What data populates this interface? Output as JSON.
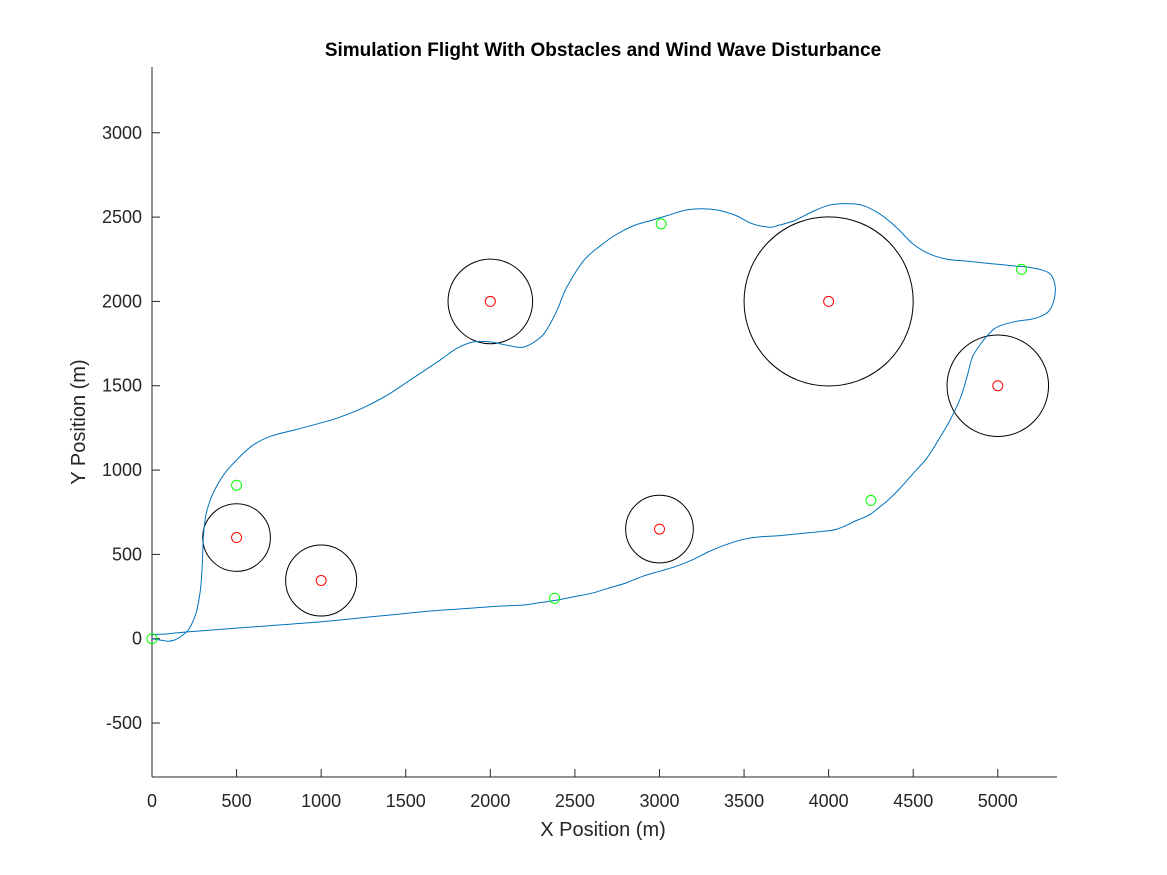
{
  "chart_data": {
    "type": "line",
    "title": "Simulation Flight With Obstacles and Wind Wave Disturbance",
    "xlabel": "X Position (m)",
    "ylabel": "Y Position (m)",
    "xlim": [
      0,
      5350
    ],
    "ylim": [
      -820,
      3390
    ],
    "xticks": [
      0,
      500,
      1000,
      1500,
      2000,
      2500,
      3000,
      3500,
      4000,
      4500,
      5000
    ],
    "yticks": [
      -500,
      0,
      500,
      1000,
      1500,
      2000,
      2500,
      3000
    ],
    "grid": false,
    "legend": "none",
    "colors": {
      "path": "#0072BD",
      "obstacle_boundary": "#000000",
      "obstacle_center": "#FF0000",
      "waypoint": "#00FF00",
      "axis": "#262626"
    },
    "obstacles": [
      {
        "cx": 500,
        "cy": 600,
        "r": 200
      },
      {
        "cx": 1000,
        "cy": 345,
        "r": 210
      },
      {
        "cx": 2000,
        "cy": 2000,
        "r": 250
      },
      {
        "cx": 3000,
        "cy": 650,
        "r": 200
      },
      {
        "cx": 4000,
        "cy": 2000,
        "r": 500
      },
      {
        "cx": 5000,
        "cy": 1500,
        "r": 300
      }
    ],
    "waypoints": [
      {
        "x": 0,
        "y": 0
      },
      {
        "x": 500,
        "y": 910
      },
      {
        "x": 2380,
        "y": 240
      },
      {
        "x": 3010,
        "y": 2460
      },
      {
        "x": 4250,
        "y": 820
      },
      {
        "x": 5140,
        "y": 2190
      }
    ],
    "series": [
      {
        "x": [
          0,
          60,
          100,
          140,
          180,
          220,
          260,
          285,
          295,
          300,
          305,
          320,
          360,
          430,
          520,
          600,
          700,
          850,
          1000,
          1100,
          1250,
          1400,
          1550,
          1700,
          1800,
          1900,
          2000,
          2100,
          2200,
          2300,
          2350,
          2400,
          2450,
          2550,
          2650,
          2750,
          2850,
          2950,
          3050,
          3150,
          3250,
          3350,
          3450,
          3550,
          3650,
          3700,
          3800,
          3900,
          4000,
          4100,
          4200,
          4300,
          4400,
          4500,
          4600,
          4700,
          4800,
          4900,
          5000,
          5100,
          5200,
          5280,
          5320,
          5340,
          5330,
          5300,
          5250,
          5200,
          5100,
          5000,
          4950,
          4900,
          4850,
          4820,
          4780,
          4720,
          4650,
          4580,
          4500,
          4420,
          4350,
          4300,
          4250,
          4200,
          4150,
          4100,
          4050,
          4000,
          3950,
          3900,
          3800,
          3700,
          3600,
          3500,
          3400,
          3300,
          3200,
          3100,
          3000,
          2900,
          2800,
          2700,
          2600,
          2500,
          2400,
          2300,
          2200,
          2100,
          2000,
          1800,
          1600,
          1400,
          1200,
          1000,
          800,
          600,
          400,
          200,
          100,
          0
        ],
        "y": [
          0,
          -10,
          -15,
          -5,
          20,
          60,
          150,
          280,
          400,
          500,
          620,
          740,
          860,
          980,
          1080,
          1150,
          1200,
          1240,
          1280,
          1310,
          1370,
          1450,
          1550,
          1650,
          1720,
          1760,
          1760,
          1740,
          1730,
          1790,
          1860,
          1960,
          2080,
          2240,
          2330,
          2400,
          2450,
          2480,
          2510,
          2540,
          2550,
          2540,
          2510,
          2460,
          2440,
          2450,
          2480,
          2530,
          2570,
          2580,
          2570,
          2520,
          2440,
          2340,
          2280,
          2250,
          2240,
          2230,
          2220,
          2210,
          2200,
          2180,
          2150,
          2080,
          2000,
          1940,
          1910,
          1895,
          1880,
          1850,
          1810,
          1750,
          1670,
          1560,
          1430,
          1300,
          1180,
          1070,
          980,
          890,
          820,
          780,
          740,
          715,
          695,
          670,
          650,
          640,
          635,
          630,
          620,
          610,
          605,
          590,
          560,
          520,
          470,
          430,
          400,
          370,
          330,
          300,
          270,
          250,
          230,
          215,
          200,
          195,
          190,
          175,
          160,
          140,
          120,
          100,
          85,
          70,
          55,
          40,
          30,
          25
        ]
      }
    ]
  }
}
